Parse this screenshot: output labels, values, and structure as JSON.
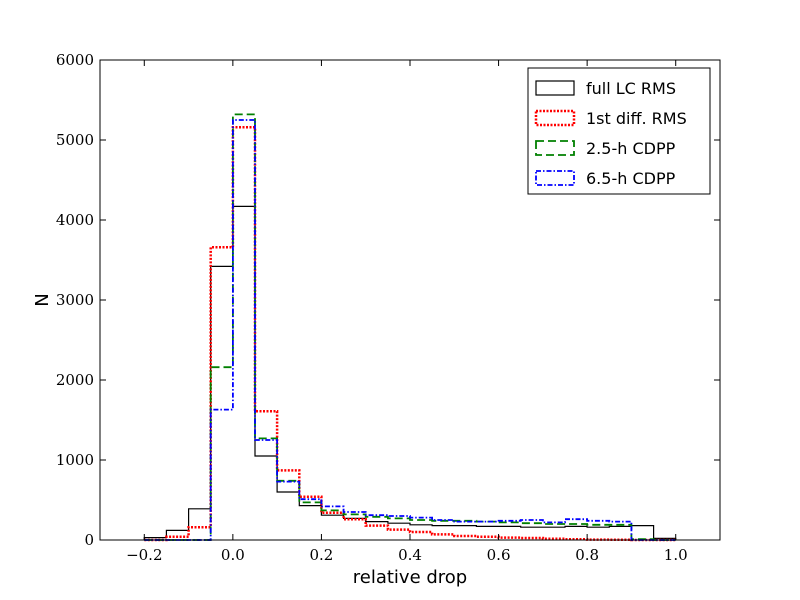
{
  "chart_data": {
    "type": "histogram",
    "title": "",
    "xlabel": "relative drop",
    "ylabel": "N",
    "xlim": [
      -0.3,
      1.1
    ],
    "ylim": [
      0,
      6000
    ],
    "xticks": [
      -0.2,
      0.0,
      0.2,
      0.4,
      0.6,
      0.8,
      1.0
    ],
    "xtick_labels": [
      "−0.2",
      "0.0",
      "0.2",
      "0.4",
      "0.6",
      "0.8",
      "1.0"
    ],
    "yticks": [
      0,
      1000,
      2000,
      3000,
      4000,
      5000,
      6000
    ],
    "ytick_labels": [
      "0",
      "1000",
      "2000",
      "3000",
      "4000",
      "5000",
      "6000"
    ],
    "grid": false,
    "legend_position": "top-right",
    "bin_edges": [
      -0.2,
      -0.15,
      -0.1,
      -0.05,
      0.0,
      0.05,
      0.1,
      0.15,
      0.2,
      0.25,
      0.3,
      0.35,
      0.4,
      0.45,
      0.5,
      0.55,
      0.6,
      0.65,
      0.7,
      0.75,
      0.8,
      0.85,
      0.9,
      0.95,
      1.0
    ],
    "series": [
      {
        "name": "full LC RMS",
        "color": "#000000",
        "dash": "solid",
        "values": [
          30,
          120,
          390,
          3420,
          4170,
          1050,
          600,
          430,
          310,
          270,
          230,
          210,
          190,
          180,
          180,
          170,
          170,
          160,
          160,
          170,
          160,
          170,
          180,
          20
        ]
      },
      {
        "name": "1st diff. RMS",
        "color": "#ff0000",
        "dash": "dotted",
        "values": [
          0,
          40,
          160,
          3660,
          5160,
          1610,
          870,
          540,
          340,
          260,
          180,
          130,
          100,
          70,
          50,
          40,
          30,
          25,
          15,
          10,
          5,
          3,
          0,
          0
        ]
      },
      {
        "name": "2.5-h CDPP",
        "color": "#008000",
        "dash": "dashed",
        "values": [
          0,
          0,
          0,
          2160,
          5320,
          1270,
          740,
          470,
          370,
          320,
          290,
          270,
          250,
          240,
          240,
          230,
          220,
          210,
          200,
          200,
          190,
          190,
          10,
          0
        ]
      },
      {
        "name": "6.5-h CDPP",
        "color": "#0000ff",
        "dash": "dashdot",
        "values": [
          0,
          0,
          0,
          1630,
          5250,
          1250,
          730,
          510,
          420,
          350,
          310,
          300,
          280,
          250,
          230,
          230,
          240,
          250,
          220,
          260,
          240,
          230,
          0,
          0
        ]
      }
    ]
  }
}
